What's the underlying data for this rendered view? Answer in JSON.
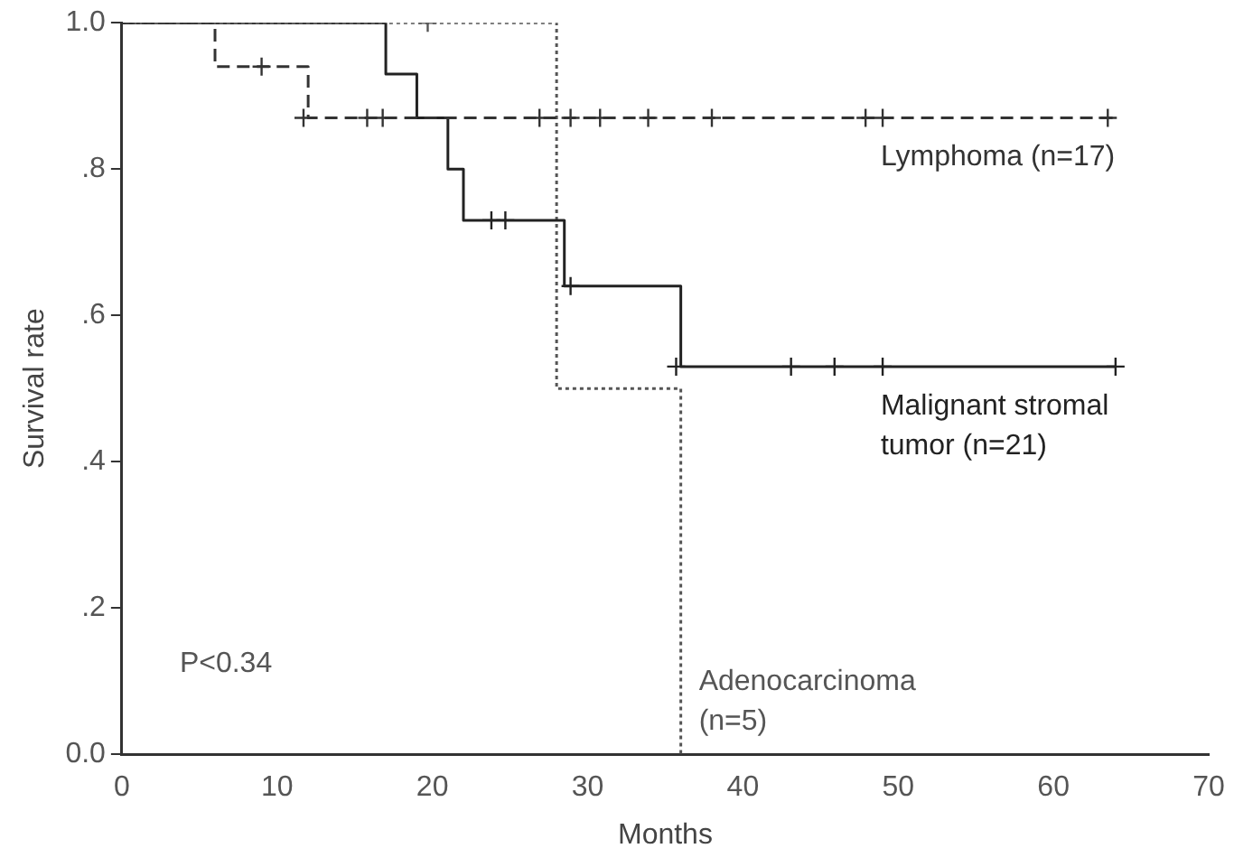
{
  "chart_data": {
    "type": "step",
    "xlabel": "Months",
    "ylabel": "Survival rate",
    "xlim": [
      0,
      70
    ],
    "xticks": [
      0,
      10,
      20,
      30,
      40,
      50,
      60,
      70
    ],
    "ylim": [
      0,
      1
    ],
    "yticks": [
      {
        "value": 0,
        "label": "0.0"
      },
      {
        "value": 0.2,
        "label": ".2"
      },
      {
        "value": 0.4,
        "label": ".4"
      },
      {
        "value": 0.6,
        "label": ".6"
      },
      {
        "value": 0.8,
        "label": ".8"
      },
      {
        "value": 1,
        "label": "1.0"
      }
    ],
    "grid": false,
    "legend": false,
    "annotations": [
      "P<0.34"
    ],
    "series": [
      {
        "name": "Lymphoma (n=17)",
        "color": "#333333",
        "line_style": "dashed",
        "x": [
          0,
          6,
          12,
          64
        ],
        "values": [
          1,
          0.94,
          0.87,
          0.87
        ]
      },
      {
        "name": "Malignant stromal tumor (n=21)",
        "color": "#222222",
        "line_style": "solid",
        "x": [
          0,
          17,
          19,
          21,
          22,
          28.5,
          36,
          64
        ],
        "values": [
          1,
          0.93,
          0.87,
          0.8,
          0.73,
          0.64,
          0.53,
          0.53
        ]
      },
      {
        "name": "Adenocarcinoma (n=5)",
        "color": "#555555",
        "line_style": "dotted",
        "x": [
          0,
          28,
          36,
          36
        ],
        "values": [
          1,
          0.5,
          0.5,
          0
        ]
      },
      {
        "type": "scatter",
        "marker": "cross",
        "color": "#333333",
        "x": [
          9,
          11.7,
          15.8,
          16.8,
          26.9,
          28.9,
          30.8,
          33.9,
          38,
          47.9,
          49,
          63.5
        ],
        "values": [
          0.94,
          0.87,
          0.87,
          0.87,
          0.87,
          0.87,
          0.87,
          0.87,
          0.87,
          0.87,
          0.87,
          0.87
        ]
      },
      {
        "type": "scatter",
        "marker": "cross",
        "color": "#222222",
        "x": [
          23.8,
          24.7,
          28.9,
          35.7,
          43.1,
          45.9,
          49,
          64
        ],
        "values": [
          0.73,
          0.73,
          0.64,
          0.53,
          0.53,
          0.53,
          0.53,
          0.53
        ]
      },
      {
        "type": "scatter",
        "marker": "cross",
        "color": "#555555",
        "x": [
          19.7
        ],
        "values": [
          1
        ]
      }
    ]
  }
}
